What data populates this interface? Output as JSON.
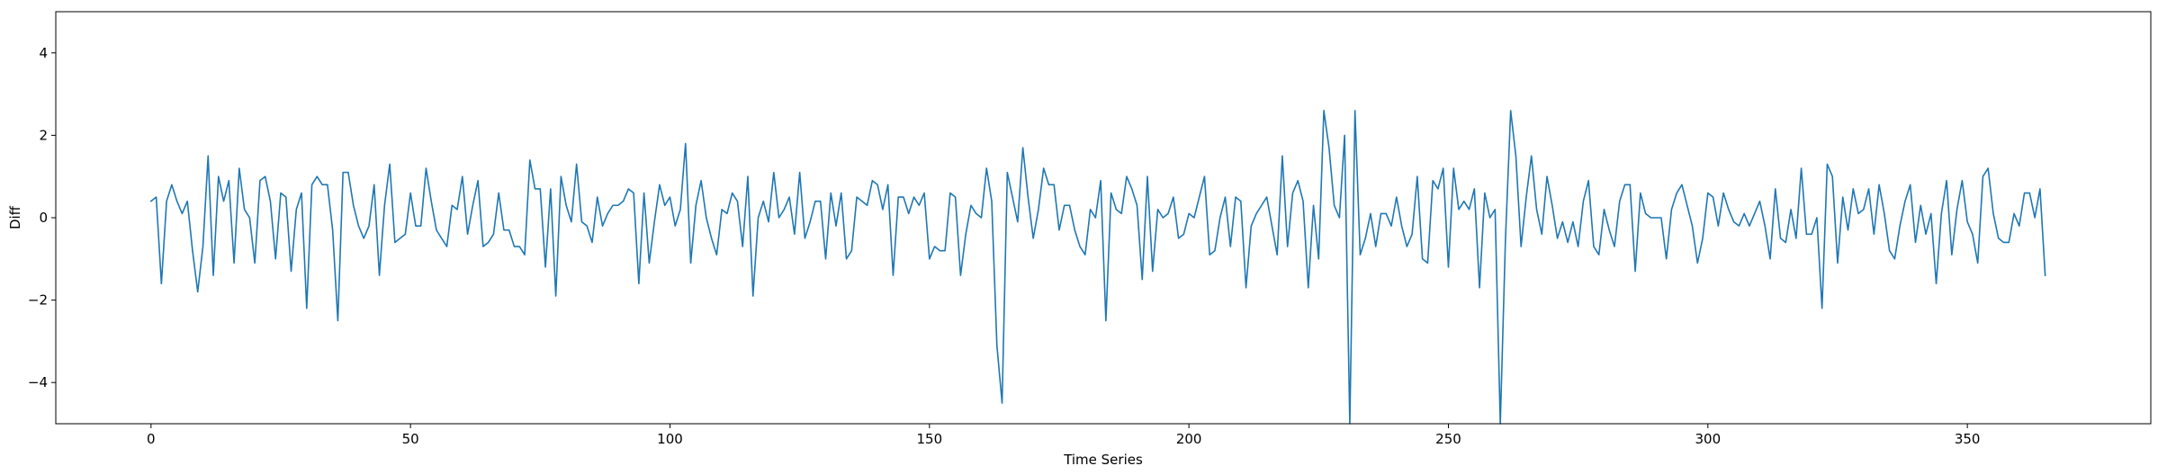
{
  "chart_data": {
    "type": "line",
    "title": "",
    "xlabel": "Time Series",
    "ylabel": "Diff",
    "xlim": [
      -18.35,
      385.35
    ],
    "ylim": [
      -5,
      5
    ],
    "xticks": [
      0,
      50,
      100,
      150,
      200,
      250,
      300,
      350
    ],
    "yticks": [
      -4,
      -2,
      0,
      2,
      4
    ],
    "xtick_labels": [
      "0",
      "50",
      "100",
      "150",
      "200",
      "250",
      "300",
      "350"
    ],
    "ytick_labels": [
      "−4",
      "−2",
      "0",
      "2",
      "4"
    ],
    "grid": false,
    "line_color": "#1f77b4",
    "series": [
      {
        "x_start": 0,
        "values": [
          0.4,
          0.5,
          -1.6,
          0.4,
          0.8,
          0.4,
          0.1,
          0.4,
          -0.8,
          -1.8,
          -0.7,
          1.5,
          -1.4,
          1.0,
          0.4,
          0.9,
          -1.1,
          1.2,
          0.2,
          0.0,
          -1.1,
          0.9,
          1.0,
          0.4,
          -1.0,
          0.6,
          0.5,
          -1.3,
          0.2,
          0.6,
          -2.2,
          0.8,
          1.0,
          0.8,
          0.8,
          -0.3,
          -2.5,
          1.1,
          1.1,
          0.3,
          -0.2,
          -0.5,
          -0.2,
          0.8,
          -1.4,
          0.3,
          1.3,
          -0.6,
          -0.5,
          -0.4,
          0.6,
          -0.2,
          -0.2,
          1.2,
          0.4,
          -0.3,
          -0.5,
          -0.7,
          0.3,
          0.2,
          1.0,
          -0.4,
          0.3,
          0.9,
          -0.7,
          -0.6,
          -0.4,
          0.6,
          -0.3,
          -0.3,
          -0.7,
          -0.7,
          -0.9,
          1.4,
          0.7,
          0.7,
          -1.2,
          0.7,
          -1.9,
          1.0,
          0.3,
          -0.1,
          1.3,
          -0.1,
          -0.2,
          -0.6,
          0.5,
          -0.2,
          0.1,
          0.3,
          0.3,
          0.4,
          0.7,
          0.6,
          -1.6,
          0.6,
          -1.1,
          -0.1,
          0.8,
          0.3,
          0.5,
          -0.2,
          0.2,
          1.8,
          -1.1,
          0.3,
          0.9,
          0.0,
          -0.5,
          -0.9,
          0.2,
          0.1,
          0.6,
          0.4,
          -0.7,
          1.0,
          -1.9,
          0.0,
          0.4,
          -0.1,
          1.1,
          0.0,
          0.2,
          0.5,
          -0.4,
          1.1,
          -0.5,
          -0.1,
          0.4,
          0.4,
          -1.0,
          0.6,
          -0.2,
          0.6,
          -1.0,
          -0.8,
          0.5,
          0.4,
          0.3,
          0.9,
          0.8,
          0.2,
          0.8,
          -1.4,
          0.5,
          0.5,
          0.1,
          0.5,
          0.3,
          0.6,
          -1.0,
          -0.7,
          -0.8,
          -0.8,
          0.6,
          0.5,
          -1.4,
          -0.4,
          0.3,
          0.1,
          0.0,
          1.2,
          0.4,
          -3.1,
          -4.5,
          1.1,
          0.5,
          -0.1,
          1.7,
          0.5,
          -0.5,
          0.2,
          1.2,
          0.8,
          0.8,
          -0.3,
          0.3,
          0.3,
          -0.3,
          -0.7,
          -0.9,
          0.2,
          0.0,
          0.9,
          -2.5,
          0.6,
          0.2,
          0.1,
          1.0,
          0.7,
          0.3,
          -1.5,
          1.0,
          -1.3,
          0.2,
          0.0,
          0.1,
          0.5,
          -0.5,
          -0.4,
          0.1,
          0.0,
          0.5,
          1.0,
          -0.9,
          -0.8,
          0.0,
          0.5,
          -0.7,
          0.5,
          0.4,
          -1.7,
          -0.2,
          0.1,
          0.3,
          0.5,
          -0.2,
          -0.9,
          1.5,
          -0.7,
          0.6,
          0.9,
          0.4,
          -1.7,
          0.3,
          -1.0,
          2.6,
          1.7,
          0.3,
          0.0,
          2.0,
          -5.0,
          2.6,
          -0.9,
          -0.5,
          0.1,
          -0.7,
          0.1,
          0.1,
          -0.2,
          0.5,
          -0.2,
          -0.7,
          -0.4,
          1.0,
          -1.0,
          -1.1,
          0.9,
          0.7,
          1.2,
          -1.2,
          1.2,
          0.2,
          0.4,
          0.2,
          0.7,
          -1.7,
          0.6,
          0.0,
          0.2,
          -5.0,
          -0.5,
          2.6,
          1.5,
          -0.7,
          0.5,
          1.5,
          0.2,
          -0.4,
          1.0,
          0.3,
          -0.5,
          -0.1,
          -0.6,
          -0.1,
          -0.7,
          0.4,
          0.9,
          -0.7,
          -0.9,
          0.2,
          -0.3,
          -0.7,
          0.4,
          0.8,
          0.8,
          -1.3,
          0.6,
          0.1,
          0.0,
          0.0,
          0.0,
          -1.0,
          0.2,
          0.6,
          0.8,
          0.3,
          -0.2,
          -1.1,
          -0.5,
          0.6,
          0.5,
          -0.2,
          0.6,
          0.2,
          -0.1,
          -0.2,
          0.1,
          -0.2,
          0.1,
          0.4,
          -0.2,
          -1.0,
          0.7,
          -0.5,
          -0.6,
          0.2,
          -0.5,
          1.2,
          -0.4,
          -0.4,
          0.0,
          -2.2,
          1.3,
          1.0,
          -1.1,
          0.5,
          -0.3,
          0.7,
          0.1,
          0.2,
          0.7,
          -0.4,
          0.8,
          0.1,
          -0.8,
          -1.0,
          -0.2,
          0.4,
          0.8,
          -0.6,
          0.3,
          -0.4,
          0.1,
          -1.6,
          0.1,
          0.9,
          -0.9,
          0.2,
          0.9,
          -0.1,
          -0.4,
          -1.1,
          1.0,
          1.2,
          0.1,
          -0.5,
          -0.6,
          -0.6,
          0.1,
          -0.2,
          0.6,
          0.6,
          0.0,
          0.7,
          -1.4
        ]
      }
    ]
  }
}
